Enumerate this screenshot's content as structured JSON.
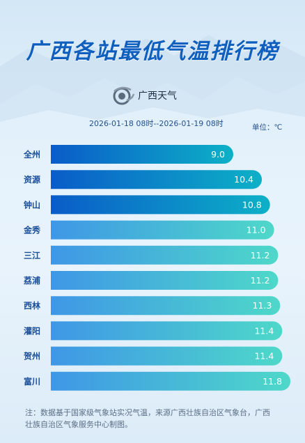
{
  "title": "广西各站最低气温排行榜",
  "brand": {
    "name": "广西天气",
    "logo_icon": "guangxi-weather-logo-icon"
  },
  "period": "2026-01-18 08时--2026-01-19 08时",
  "unit": "单位：℃",
  "chart_data": {
    "type": "bar",
    "orientation": "horizontal",
    "categories": [
      "全州",
      "资源",
      "钟山",
      "金秀",
      "三江",
      "荔浦",
      "西林",
      "灌阳",
      "贺州",
      "富川"
    ],
    "values": [
      9.0,
      10.4,
      10.8,
      11.0,
      11.2,
      11.2,
      11.3,
      11.4,
      11.4,
      11.8
    ],
    "value_labels": [
      "9.0",
      "10.4",
      "10.8",
      "11.0",
      "11.2",
      "11.2",
      "11.3",
      "11.4",
      "11.4",
      "11.8"
    ],
    "title": "广西各站最低气温排行榜",
    "xlabel": "",
    "ylabel": "",
    "grid": false,
    "legend": "none",
    "colors": {
      "top_start": "#0a5cc8",
      "top_end": "#0db0c7",
      "rest_start": "#3f97e6",
      "rest_end": "#4ed8c9"
    }
  },
  "note": "注：数据基于国家级气象站实况气温，来源广西壮族自治区气象台，广西壮族自治区气象服务中心制图。"
}
